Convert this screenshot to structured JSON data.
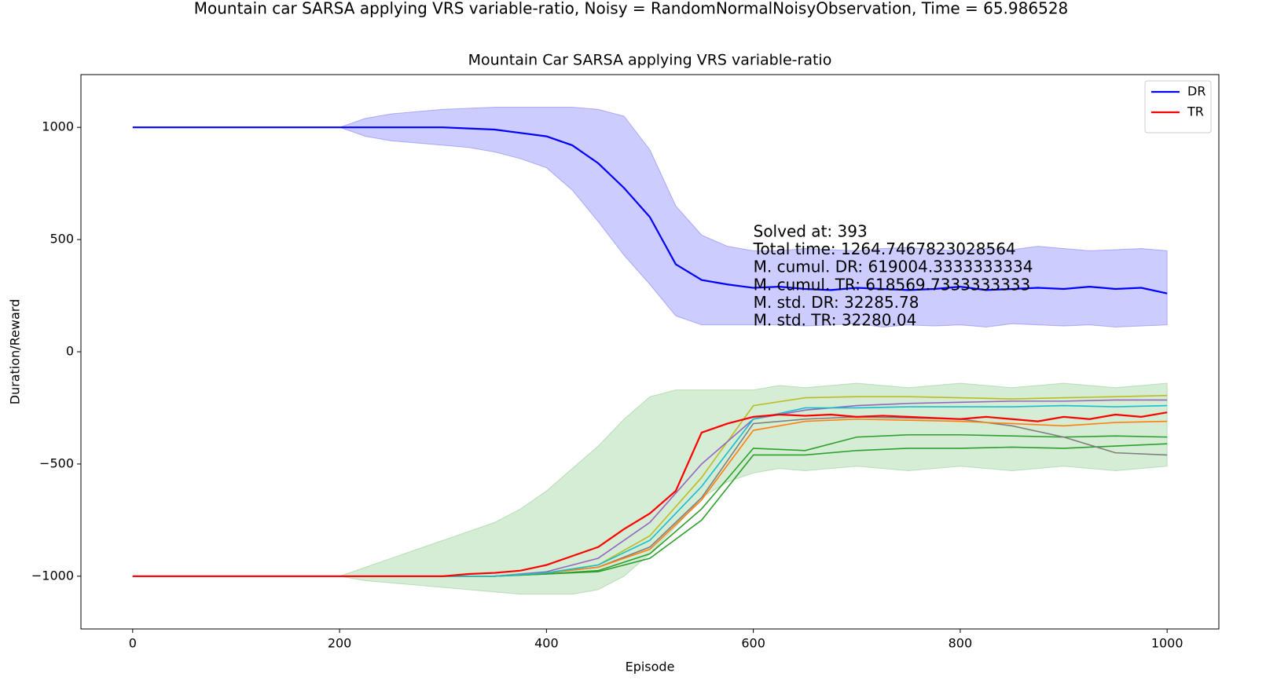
{
  "chart_data": {
    "type": "line",
    "suptitle": "Mountain car SARSA applying VRS variable-ratio, Noisy = RandomNormalNoisyObservation, Time = 65.986528",
    "title": "Mountain Car SARSA applying VRS variable-ratio",
    "xlabel": "Episode",
    "ylabel": "Duration/Reward",
    "xlim": [
      -50,
      1050
    ],
    "ylim": [
      -1235,
      1235
    ],
    "xticks": [
      0,
      200,
      400,
      600,
      800,
      1000
    ],
    "yticks": [
      {
        "value": -1000,
        "label": "−1000"
      },
      {
        "value": -500,
        "label": "−500"
      },
      0,
      500,
      1000
    ],
    "legend": "upper right",
    "annotations": [
      "Solved at: 393",
      "Total time: 1264.7467823028564",
      "M. cumul. DR: 619004.3333333334",
      "M. cumul. TR: 618569.7333333333",
      "M. std. DR: 32285.78",
      "M. std. TR: 32280.04"
    ],
    "series": [
      {
        "name": "DR",
        "color": "#0000ff",
        "band_color": "#0000ff",
        "x": [
          0,
          25,
          50,
          75,
          100,
          125,
          150,
          175,
          200,
          225,
          250,
          275,
          300,
          325,
          350,
          375,
          400,
          425,
          450,
          475,
          500,
          525,
          550,
          575,
          600,
          625,
          650,
          675,
          700,
          725,
          750,
          775,
          800,
          825,
          850,
          875,
          900,
          925,
          950,
          975,
          1000
        ],
        "values": [
          1000,
          1000,
          1000,
          1000,
          1000,
          1000,
          1000,
          1000,
          1000,
          1000,
          1000,
          1000,
          1000,
          995,
          990,
          975,
          960,
          920,
          840,
          730,
          600,
          390,
          320,
          300,
          285,
          290,
          280,
          275,
          285,
          280,
          275,
          280,
          290,
          275,
          280,
          285,
          280,
          290,
          280,
          285,
          260
        ],
        "band": {
          "lower": [
            1000,
            1000,
            1000,
            1000,
            1000,
            1000,
            1000,
            1000,
            1000,
            960,
            940,
            930,
            920,
            910,
            890,
            860,
            820,
            720,
            580,
            430,
            300,
            160,
            120,
            120,
            120,
            120,
            115,
            120,
            125,
            110,
            120,
            115,
            120,
            110,
            125,
            120,
            115,
            120,
            110,
            115,
            120
          ],
          "upper": [
            1000,
            1000,
            1000,
            1000,
            1000,
            1000,
            1000,
            1000,
            1000,
            1040,
            1060,
            1070,
            1080,
            1085,
            1090,
            1090,
            1090,
            1090,
            1080,
            1050,
            900,
            650,
            520,
            470,
            450,
            450,
            460,
            455,
            450,
            460,
            465,
            455,
            450,
            460,
            455,
            470,
            460,
            450,
            455,
            460,
            450
          ]
        }
      },
      {
        "name": "TR",
        "color": "#ff0000",
        "band_color": "#2ca02c",
        "x": [
          0,
          25,
          50,
          75,
          100,
          125,
          150,
          175,
          200,
          225,
          250,
          275,
          300,
          325,
          350,
          375,
          400,
          425,
          450,
          475,
          500,
          525,
          550,
          575,
          600,
          625,
          650,
          675,
          700,
          725,
          750,
          775,
          800,
          825,
          850,
          875,
          900,
          925,
          950,
          975,
          1000
        ],
        "values": [
          -1000,
          -1000,
          -1000,
          -1000,
          -1000,
          -1000,
          -1000,
          -1000,
          -1000,
          -1000,
          -1000,
          -1000,
          -1000,
          -990,
          -985,
          -975,
          -950,
          -910,
          -870,
          -790,
          -720,
          -620,
          -360,
          -320,
          -290,
          -280,
          -285,
          -280,
          -290,
          -285,
          -290,
          -295,
          -300,
          -290,
          -300,
          -310,
          -290,
          -300,
          -280,
          -290,
          -270
        ],
        "band": {
          "lower": [
            -1000,
            -1000,
            -1000,
            -1000,
            -1000,
            -1000,
            -1000,
            -1000,
            -1000,
            -1020,
            -1030,
            -1040,
            -1050,
            -1060,
            -1070,
            -1080,
            -1080,
            -1080,
            -1060,
            -1000,
            -900,
            -780,
            -650,
            -580,
            -540,
            -520,
            -530,
            -520,
            -510,
            -520,
            -530,
            -520,
            -510,
            -520,
            -530,
            -520,
            -510,
            -520,
            -530,
            -520,
            -510
          ],
          "upper": [
            -1000,
            -1000,
            -1000,
            -1000,
            -1000,
            -1000,
            -1000,
            -1000,
            -1000,
            -960,
            -920,
            -880,
            -840,
            -800,
            -760,
            -700,
            -620,
            -520,
            -420,
            -300,
            -200,
            -170,
            -170,
            -170,
            -170,
            -150,
            -160,
            -150,
            -140,
            -150,
            -160,
            -150,
            -140,
            -150,
            -160,
            -150,
            -140,
            -150,
            -160,
            -150,
            -140
          ]
        }
      },
      {
        "color": "#bcbd22",
        "x": [
          0,
          50,
          100,
          150,
          200,
          250,
          300,
          350,
          400,
          450,
          500,
          550,
          600,
          650,
          700,
          750,
          800,
          850,
          900,
          950,
          1000
        ],
        "values": [
          -1000,
          -1000,
          -1000,
          -1000,
          -1000,
          -1000,
          -1000,
          -1000,
          -985,
          -950,
          -820,
          -560,
          -240,
          -205,
          -200,
          -200,
          -205,
          -210,
          -205,
          -200,
          -195
        ]
      },
      {
        "color": "#9467bd",
        "x": [
          0,
          50,
          100,
          150,
          200,
          250,
          300,
          350,
          400,
          450,
          500,
          550,
          600,
          650,
          700,
          750,
          800,
          850,
          900,
          950,
          1000
        ],
        "values": [
          -1000,
          -1000,
          -1000,
          -1000,
          -1000,
          -1000,
          -1000,
          -1000,
          -980,
          -920,
          -760,
          -500,
          -300,
          -260,
          -240,
          -230,
          -225,
          -220,
          -220,
          -215,
          -215
        ]
      },
      {
        "color": "#2ca02c",
        "x": [
          0,
          50,
          100,
          150,
          200,
          250,
          300,
          350,
          400,
          450,
          500,
          550,
          600,
          650,
          700,
          750,
          800,
          850,
          900,
          950,
          1000
        ],
        "values": [
          -1000,
          -1000,
          -1000,
          -1000,
          -1000,
          -1000,
          -1000,
          -1000,
          -990,
          -975,
          -900,
          -700,
          -430,
          -440,
          -380,
          -370,
          -370,
          -375,
          -380,
          -375,
          -380
        ]
      },
      {
        "color": "#2ca02c",
        "x": [
          0,
          50,
          100,
          150,
          200,
          250,
          300,
          350,
          400,
          450,
          500,
          550,
          600,
          650,
          700,
          750,
          800,
          850,
          900,
          950,
          1000
        ],
        "values": [
          -1000,
          -1000,
          -1000,
          -1000,
          -1000,
          -1000,
          -1000,
          -1000,
          -990,
          -980,
          -920,
          -750,
          -460,
          -460,
          -440,
          -430,
          -430,
          -425,
          -430,
          -420,
          -410
        ]
      },
      {
        "color": "#7f7f7f",
        "x": [
          0,
          50,
          100,
          150,
          200,
          250,
          300,
          350,
          400,
          450,
          500,
          550,
          600,
          650,
          700,
          750,
          800,
          850,
          900,
          950,
          1000
        ],
        "values": [
          -1000,
          -1000,
          -1000,
          -1000,
          -1000,
          -1000,
          -1000,
          -1000,
          -985,
          -960,
          -870,
          -650,
          -320,
          -300,
          -290,
          -295,
          -300,
          -330,
          -380,
          -450,
          -460
        ]
      },
      {
        "color": "#ff7f0e",
        "x": [
          0,
          50,
          100,
          150,
          200,
          250,
          300,
          350,
          400,
          450,
          500,
          550,
          600,
          650,
          700,
          750,
          800,
          850,
          900,
          950,
          1000
        ],
        "values": [
          -1000,
          -1000,
          -1000,
          -1000,
          -1000,
          -1000,
          -1000,
          -1000,
          -985,
          -960,
          -880,
          -660,
          -350,
          -310,
          -300,
          -305,
          -310,
          -320,
          -330,
          -315,
          -310
        ]
      },
      {
        "color": "#17becf",
        "x": [
          0,
          50,
          100,
          150,
          200,
          250,
          300,
          350,
          400,
          450,
          500,
          550,
          600,
          650,
          700,
          750,
          800,
          850,
          900,
          950,
          1000
        ],
        "values": [
          -1000,
          -1000,
          -1000,
          -1000,
          -1000,
          -1000,
          -1000,
          -1000,
          -985,
          -950,
          -840,
          -600,
          -300,
          -250,
          -250,
          -245,
          -245,
          -245,
          -240,
          -245,
          -240
        ]
      }
    ]
  }
}
